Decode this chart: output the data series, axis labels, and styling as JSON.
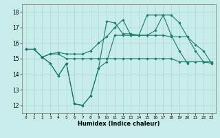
{
  "xlabel": "Humidex (Indice chaleur)",
  "bg_color": "#c8ece9",
  "line_color": "#1a7a6e",
  "grid_color": "#a8d8d2",
  "xlim": [
    -0.5,
    23.5
  ],
  "ylim": [
    11.5,
    18.5
  ],
  "xticks": [
    0,
    1,
    2,
    3,
    4,
    5,
    6,
    7,
    8,
    9,
    10,
    11,
    12,
    13,
    14,
    15,
    16,
    17,
    18,
    19,
    20,
    21,
    22,
    23
  ],
  "yticks": [
    12,
    13,
    14,
    15,
    16,
    17,
    18
  ],
  "series": [
    [
      15.6,
      15.6,
      15.1,
      14.7,
      13.9,
      14.7,
      12.1,
      12.0,
      12.6,
      14.4,
      14.8,
      16.5,
      16.5,
      16.5,
      16.5,
      16.5,
      16.5,
      16.5,
      16.4,
      16.4,
      16.4,
      15.5,
      14.8,
      14.7
    ],
    [
      15.6,
      15.6,
      15.1,
      15.3,
      15.3,
      15.0,
      15.0,
      15.0,
      15.0,
      15.0,
      15.0,
      15.0,
      15.0,
      15.0,
      15.0,
      15.0,
      15.0,
      15.0,
      15.0,
      14.8,
      14.8,
      14.8,
      14.8,
      14.8
    ],
    [
      15.6,
      15.6,
      15.1,
      15.3,
      15.4,
      15.3,
      15.3,
      15.3,
      15.5,
      16.0,
      16.4,
      17.0,
      17.5,
      16.5,
      16.5,
      16.5,
      16.8,
      17.8,
      17.8,
      17.3,
      16.4,
      15.9,
      15.5,
      14.7
    ],
    [
      15.6,
      15.6,
      15.1,
      14.7,
      13.9,
      14.7,
      12.1,
      12.0,
      12.6,
      14.4,
      17.4,
      17.3,
      16.6,
      16.6,
      16.5,
      17.8,
      17.8,
      17.8,
      16.5,
      15.5,
      14.7,
      null,
      null,
      null
    ]
  ]
}
